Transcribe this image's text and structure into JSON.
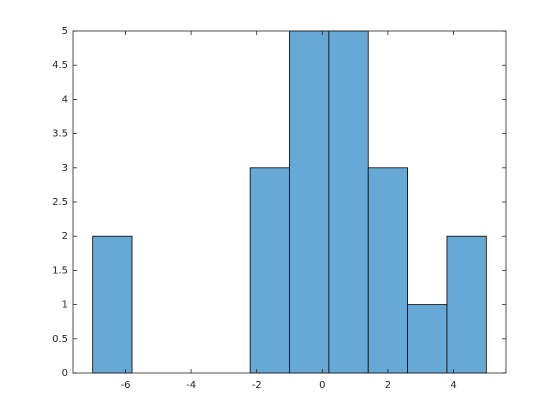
{
  "chart_data": {
    "type": "histogram",
    "bins": [
      -7.0,
      -5.8,
      -4.6,
      -3.4,
      -2.2,
      -1.0,
      0.2,
      1.4,
      2.6,
      3.8,
      5.0
    ],
    "values": [
      2,
      0,
      0,
      0,
      3,
      5,
      5,
      3,
      1,
      2
    ],
    "color": "#66a9d7",
    "xlim": [
      -7.6,
      5.6
    ],
    "xticks": [
      -6,
      -4,
      -2,
      0,
      2,
      4
    ],
    "ylim": [
      0,
      5
    ],
    "yticks": [
      0,
      0.5,
      1,
      1.5,
      2,
      2.5,
      3,
      3.5,
      4,
      4.5,
      5
    ]
  }
}
